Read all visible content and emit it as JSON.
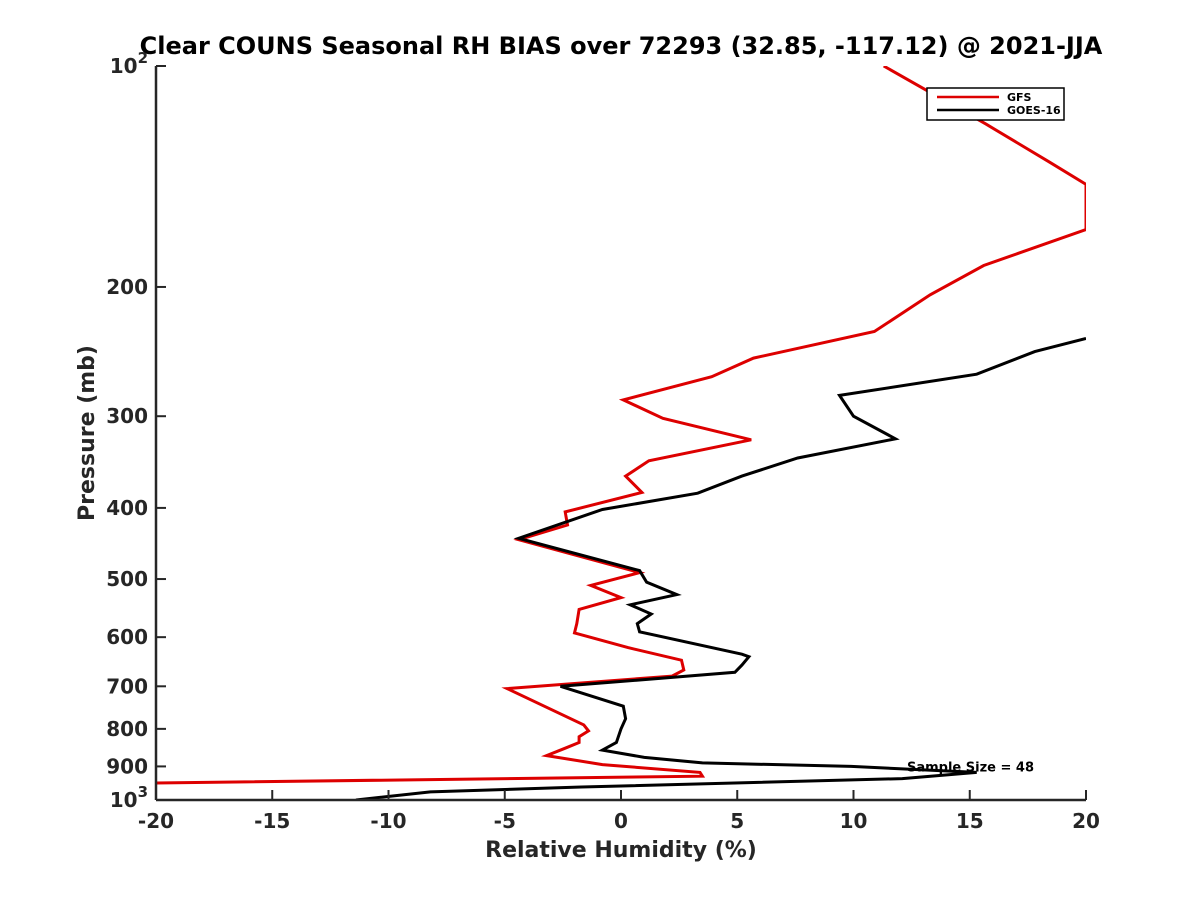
{
  "chart_data": {
    "type": "line",
    "title": "Clear COUNS Seasonal RH BIAS over 72293 (32.85, -117.12) @ 2021-JJA",
    "xlabel": "Relative Humidity (%)",
    "ylabel": "Pressure (mb)",
    "xlim": [
      -20,
      20
    ],
    "ylim": [
      100,
      1000
    ],
    "yscale": "log",
    "y_reversed": true,
    "grid": false,
    "legend_position": "top-right",
    "x_ticks": [
      "-20",
      "-15",
      "-10",
      "-5",
      "0",
      "5",
      "10",
      "15",
      "20"
    ],
    "y_ticks": [
      {
        "value": 100,
        "base": "10",
        "exp": "2"
      },
      {
        "value": 200,
        "label": "200"
      },
      {
        "value": 300,
        "label": "300"
      },
      {
        "value": 400,
        "label": "400"
      },
      {
        "value": 500,
        "label": "500"
      },
      {
        "value": 600,
        "label": "600"
      },
      {
        "value": 700,
        "label": "700"
      },
      {
        "value": 800,
        "label": "800"
      },
      {
        "value": 900,
        "label": "900"
      },
      {
        "value": 1000,
        "base": "10",
        "exp": "3"
      }
    ],
    "annotation": "Sample Size = 48",
    "annotation_at": {
      "x": 12.3,
      "p": 900
    },
    "series": [
      {
        "name": "GFS",
        "color": "#dd0000",
        "points": [
          [
            11.3,
            100
          ],
          [
            15.7,
            120
          ],
          [
            18.4,
            135
          ],
          [
            20.0,
            145
          ],
          [
            20.0,
            167
          ],
          [
            15.6,
            187
          ],
          [
            13.3,
            205
          ],
          [
            10.9,
            230
          ],
          [
            5.7,
            250
          ],
          [
            3.9,
            265
          ],
          [
            0.1,
            285
          ],
          [
            1.8,
            302
          ],
          [
            5.6,
            323
          ],
          [
            1.2,
            345
          ],
          [
            0.2,
            362
          ],
          [
            0.9,
            381
          ],
          [
            -2.4,
            405
          ],
          [
            -2.3,
            422
          ],
          [
            -4.4,
            442
          ],
          [
            0.8,
            490
          ],
          [
            -1.3,
            510
          ],
          [
            0.0,
            530
          ],
          [
            -1.8,
            550
          ],
          [
            -1.9,
            575
          ],
          [
            -2.0,
            592
          ],
          [
            0.3,
            620
          ],
          [
            2.6,
            645
          ],
          [
            2.7,
            665
          ],
          [
            2.2,
            678
          ],
          [
            -4.9,
            705
          ],
          [
            -1.6,
            790
          ],
          [
            -1.4,
            805
          ],
          [
            -1.8,
            820
          ],
          [
            -1.8,
            835
          ],
          [
            -2.4,
            850
          ],
          [
            -3.2,
            870
          ],
          [
            -0.8,
            895
          ],
          [
            3.4,
            917
          ],
          [
            3.5,
            928
          ],
          [
            -20.0,
            948
          ]
        ]
      },
      {
        "name": "GOES-16",
        "color": "#000000",
        "points": [
          [
            20.0,
            235
          ],
          [
            17.8,
            245
          ],
          [
            15.3,
            263
          ],
          [
            9.4,
            281
          ],
          [
            10.0,
            300
          ],
          [
            11.8,
            322
          ],
          [
            7.6,
            342
          ],
          [
            5.2,
            362
          ],
          [
            3.3,
            382
          ],
          [
            -0.8,
            402
          ],
          [
            -4.4,
            440
          ],
          [
            0.8,
            487
          ],
          [
            1.1,
            505
          ],
          [
            2.4,
            525
          ],
          [
            0.4,
            542
          ],
          [
            1.3,
            558
          ],
          [
            0.7,
            575
          ],
          [
            0.8,
            590
          ],
          [
            5.2,
            633
          ],
          [
            5.5,
            638
          ],
          [
            5.2,
            655
          ],
          [
            4.9,
            670
          ],
          [
            -2.6,
            700
          ],
          [
            0.1,
            745
          ],
          [
            0.2,
            775
          ],
          [
            0.0,
            800
          ],
          [
            -0.2,
            835
          ],
          [
            -0.8,
            855
          ],
          [
            1.0,
            875
          ],
          [
            3.5,
            890
          ],
          [
            9.9,
            900
          ],
          [
            15.3,
            917
          ],
          [
            12.1,
            935
          ],
          [
            -1.7,
            960
          ],
          [
            -8.2,
            975
          ],
          [
            -11.4,
            1000
          ]
        ]
      }
    ]
  }
}
